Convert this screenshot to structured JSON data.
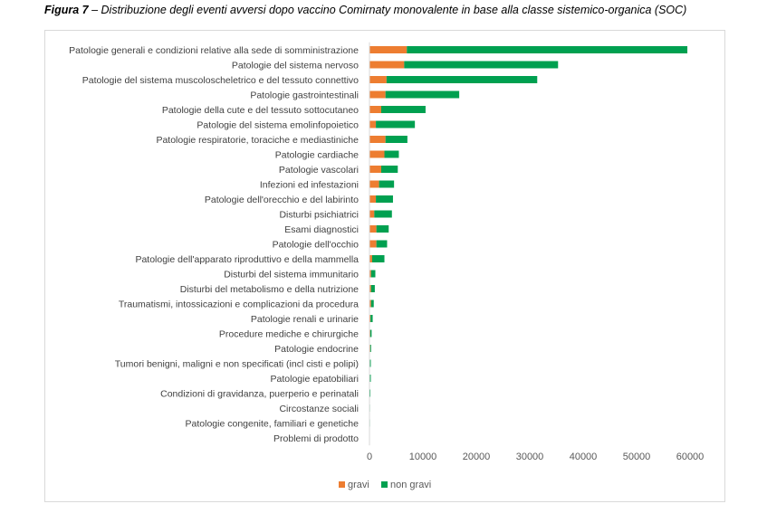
{
  "caption": {
    "figure_label": "Figura 7",
    "text": " – Distribuzione degli eventi avversi dopo vaccino Comirnaty monovalente in base alla classe sistemico-organica (SOC)"
  },
  "chart_data": {
    "type": "bar",
    "orientation": "horizontal",
    "stacked": true,
    "categories": [
      "Patologie generali e condizioni relative alla sede di somministrazione",
      "Patologie del sistema nervoso",
      "Patologie del sistema muscoloscheletrico e del tessuto connettivo",
      "Patologie gastrointestinali",
      "Patologie della cute e del tessuto sottocutaneo",
      "Patologie del sistema emolinfopoietico",
      "Patologie respiratorie, toraciche e mediastiniche",
      "Patologie cardiache",
      "Patologie vascolari",
      "Infezioni ed infestazioni",
      "Patologie dell'orecchio e del labirinto",
      "Disturbi psichiatrici",
      "Esami diagnostici",
      "Patologie dell'occhio",
      "Patologie dell'apparato riproduttivo e della mammella",
      "Disturbi del sistema immunitario",
      "Disturbi del metabolismo e della nutrizione",
      "Traumatismi, intossicazioni e complicazioni da procedura",
      "Patologie renali e urinarie",
      "Procedure mediche e chirurgiche",
      "Patologie endocrine",
      "Tumori benigni, maligni e non specificati (incl cisti e polipi)",
      "Patologie epatobiliari",
      "Condizioni di gravidanza, puerperio e perinatali",
      "Circostanze sociali",
      "Patologie congenite, familiari e genetiche",
      "Problemi di prodotto"
    ],
    "series": [
      {
        "name": "gravi",
        "color": "#ED7D31",
        "values": [
          7000,
          6500,
          3200,
          3000,
          2200,
          1200,
          3000,
          2800,
          2200,
          1800,
          1200,
          900,
          1300,
          1300,
          500,
          300,
          300,
          300,
          200,
          150,
          150,
          100,
          100,
          80,
          50,
          50,
          30
        ]
      },
      {
        "name": "non gravi",
        "color": "#00A050",
        "values": [
          52500,
          28800,
          28200,
          13800,
          8300,
          7300,
          4100,
          2700,
          3100,
          2800,
          3200,
          3300,
          2300,
          2000,
          2300,
          800,
          700,
          500,
          400,
          250,
          150,
          150,
          150,
          100,
          50,
          50,
          30
        ]
      }
    ],
    "x_ticks": [
      "0",
      "10000",
      "20000",
      "30000",
      "40000",
      "50000",
      "60000"
    ],
    "xlim": [
      0,
      60000
    ],
    "grid": false,
    "legend_position": "bottom"
  }
}
